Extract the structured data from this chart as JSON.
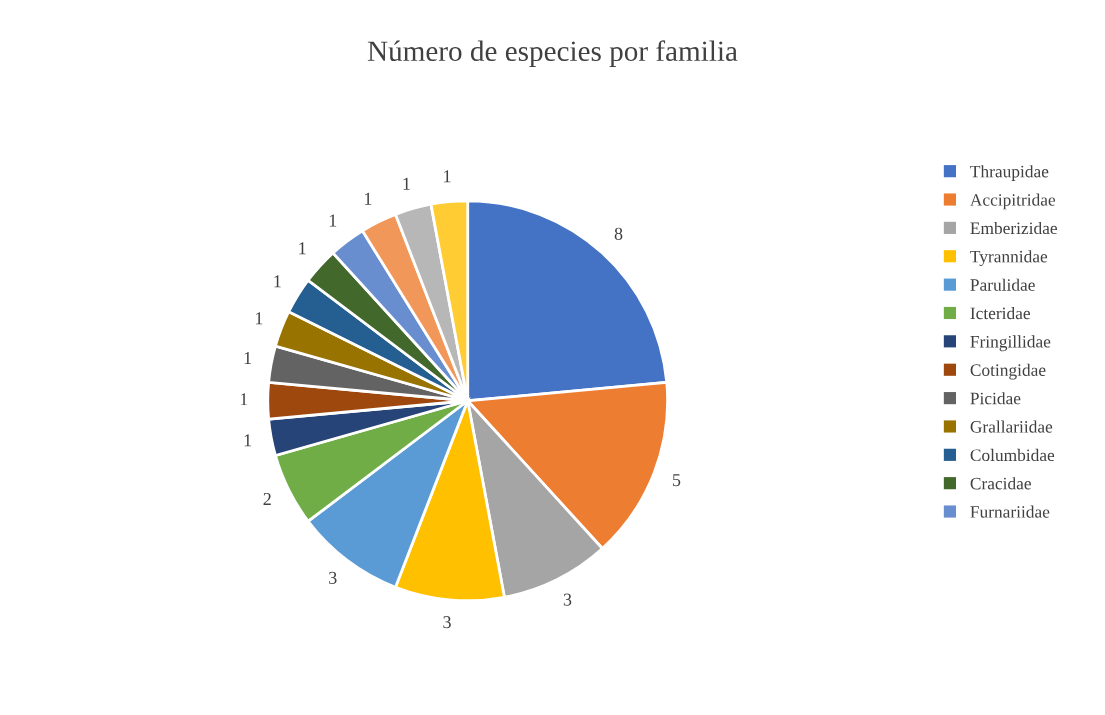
{
  "chart_data": {
    "type": "pie",
    "title": "Número de especies por familia",
    "categories": [
      "Thraupidae",
      "Accipitridae",
      "Emberizidae",
      "Tyrannidae",
      "Parulidae",
      "Icteridae",
      "Fringillidae",
      "Cotingidae",
      "Picidae",
      "Grallariidae",
      "Columbidae",
      "Cracidae",
      "Furnariidae",
      null,
      null,
      null
    ],
    "values": [
      8,
      5,
      3,
      3,
      3,
      2,
      1,
      1,
      1,
      1,
      1,
      1,
      1,
      1,
      1,
      1
    ],
    "colors": [
      "#4472c4",
      "#ed7d31",
      "#a5a5a5",
      "#ffc000",
      "#5b9bd5",
      "#70ad47",
      "#264478",
      "#9e480e",
      "#636363",
      "#997300",
      "#255e91",
      "#43682b",
      "#698ed0",
      "#f1975a",
      "#b7b7b7",
      "#ffcd33"
    ],
    "data_labels": true,
    "legend": "right"
  }
}
